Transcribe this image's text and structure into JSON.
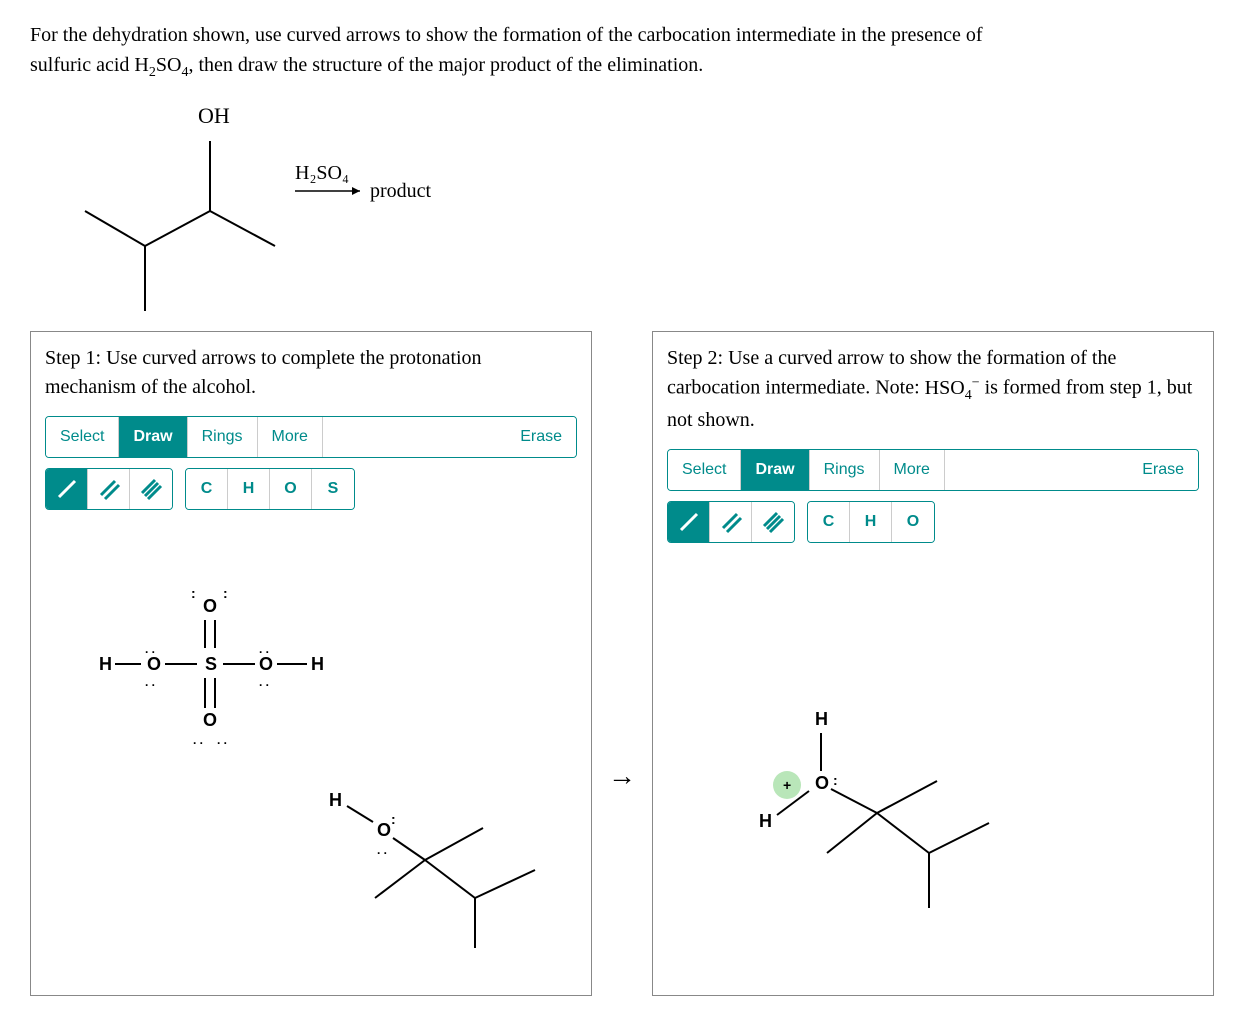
{
  "problem": {
    "line1_a": "For the dehydration shown, use curved arrows to show the formation of the carbocation intermediate in the presence of",
    "line2_a": "sulfuric acid ",
    "acid_formula_html": "H<sub>2</sub>SO<sub>4</sub>",
    "line2_b": ", then draw the structure of the major product of the elimination."
  },
  "scheme": {
    "oh_label": "OH",
    "reagent": "H₂SO₄",
    "product_label": "product",
    "bonds": {
      "stroke": "#000",
      "width": 2
    }
  },
  "mid_arrow": "→",
  "step1": {
    "text": "Step 1: Use curved arrows to complete the protonation mechanism of the alcohol.",
    "toolbar": {
      "select": "Select",
      "draw": "Draw",
      "rings": "Rings",
      "more": "More",
      "erase": "Erase"
    },
    "elements": [
      "C",
      "H",
      "O",
      "S"
    ],
    "structure_colors": {
      "stroke": "#000",
      "width": 2,
      "lp": "#000"
    },
    "atoms": {
      "H": "H",
      "O": "O",
      "S": "S"
    }
  },
  "step2": {
    "text_a": "Step 2: Use a curved arrow to show the formation of the carbocation intermediate. Note: ",
    "hso4_html": "HSO<sub>4</sub><sup>−</sup>",
    "text_b": " is formed from step 1, but not shown.",
    "toolbar": {
      "select": "Select",
      "draw": "Draw",
      "rings": "Rings",
      "more": "More",
      "erase": "Erase"
    },
    "elements": [
      "C",
      "H",
      "O"
    ],
    "highlight_color": "#b9e6b9",
    "plus": "+",
    "atoms": {
      "H": "H",
      "O": "O"
    }
  },
  "colors": {
    "teal": "#008b8b",
    "black": "#000000"
  }
}
